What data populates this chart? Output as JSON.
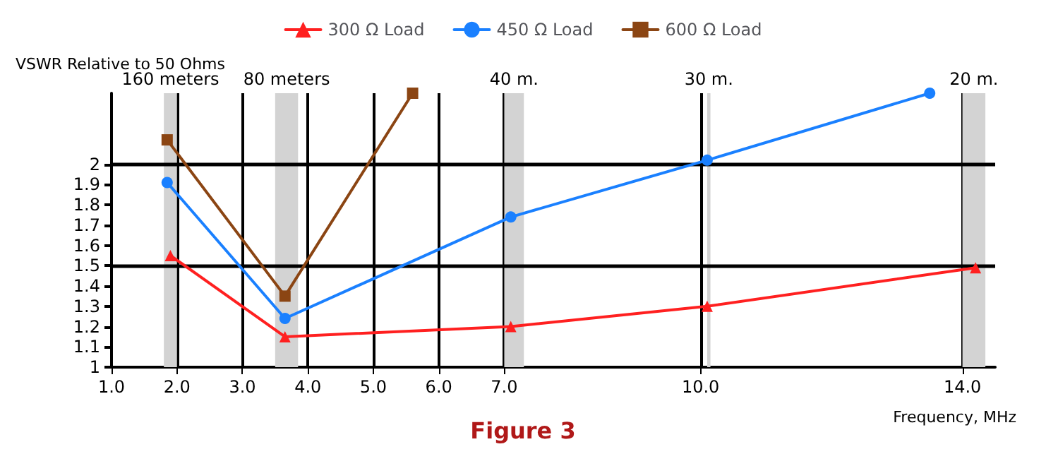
{
  "chart_data": {
    "type": "line",
    "title": "Figure 3",
    "xlabel": "Frequency, MHz",
    "ylabel": "VSWR Relative to 50 Ohms",
    "series": [
      {
        "name": "300 Ω Load",
        "color": "#ff2020",
        "marker": "triangle",
        "x": [
          1.9,
          3.65,
          7.1,
          10.1,
          14.2
        ],
        "values": [
          1.55,
          1.15,
          1.2,
          1.3,
          1.49
        ]
      },
      {
        "name": "450 Ω Load",
        "color": "#1a80ff",
        "marker": "circle",
        "x": [
          1.85,
          3.65,
          7.1,
          10.1,
          13.5
        ],
        "values": [
          1.91,
          1.24,
          1.74,
          2.02,
          2.35
        ]
      },
      {
        "name": "600 Ω Load",
        "color": "#8b4513",
        "marker": "square",
        "x": [
          1.85,
          3.65,
          5.6
        ],
        "values": [
          2.12,
          1.35,
          2.35
        ]
      }
    ],
    "xlim": [
      1,
      14.5
    ],
    "ylim": [
      1,
      2.35
    ],
    "xticks": [
      {
        "value": 1,
        "label": "1.0"
      },
      {
        "value": 2,
        "label": "2.0"
      },
      {
        "value": 3,
        "label": "3.0"
      },
      {
        "value": 4,
        "label": "4.0"
      },
      {
        "value": 5,
        "label": "5.0"
      },
      {
        "value": 6,
        "label": "6.0"
      },
      {
        "value": 7,
        "label": "7.0"
      },
      {
        "value": 10,
        "label": "10.0"
      },
      {
        "value": 14,
        "label": "14.0"
      }
    ],
    "yticks": [
      1,
      1.1,
      1.2,
      1.3,
      1.4,
      1.5,
      1.6,
      1.7,
      1.8,
      1.9,
      2
    ],
    "bands": [
      {
        "axis": "x",
        "from": 1.8,
        "to": 2.0,
        "label": "160 meters",
        "color": "#d3d3d3"
      },
      {
        "axis": "x",
        "from": 3.5,
        "to": 3.85,
        "label": "80 meters",
        "color": "#d3d3d3"
      },
      {
        "axis": "x",
        "from": 7.0,
        "to": 7.3,
        "label": "40 m.",
        "color": "#d3d3d3"
      },
      {
        "axis": "x",
        "from": 10.1,
        "to": 10.15,
        "label": "30 m.",
        "color": "#d3d3d3"
      },
      {
        "axis": "x",
        "from": 14.0,
        "to": 14.35,
        "label": "20 m.",
        "color": "#d3d3d3"
      }
    ],
    "ref_lines": [
      {
        "axis": "y",
        "value": 1.5,
        "label": null
      },
      {
        "axis": "y",
        "value": 2,
        "label": null
      }
    ],
    "grid": "x",
    "legend": "top"
  }
}
